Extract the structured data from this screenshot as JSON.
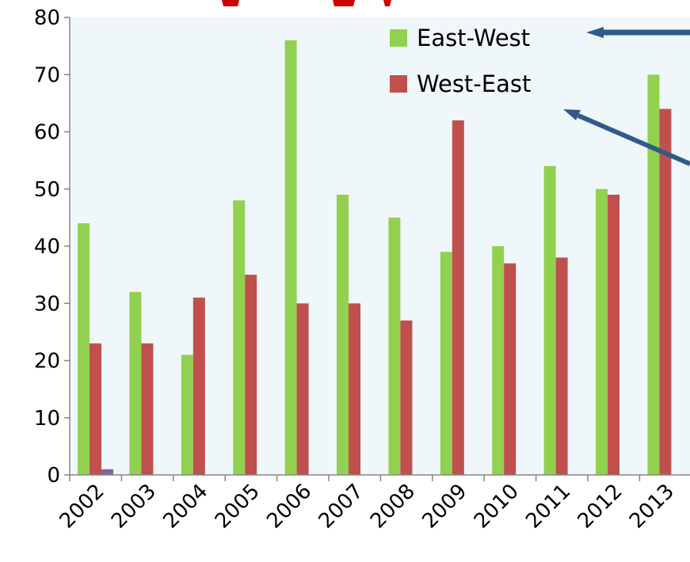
{
  "chart_data": {
    "type": "bar",
    "title": "",
    "xlabel": "",
    "ylabel": "",
    "ylim": [
      0,
      80
    ],
    "yticks": [
      "0",
      "10",
      "20",
      "30",
      "40",
      "50",
      "60",
      "70",
      "80"
    ],
    "categories": [
      "2002",
      "2003",
      "2004",
      "2005",
      "2006",
      "2007",
      "2008",
      "2009",
      "2010",
      "2011",
      "2012",
      "2013"
    ],
    "series": [
      {
        "name": "East-West",
        "color": "#92d050",
        "values": [
          44,
          32,
          21,
          48,
          76,
          49,
          45,
          39,
          40,
          54,
          50,
          70
        ]
      },
      {
        "name": "West-East",
        "color": "#c0504d",
        "values": [
          23,
          23,
          31,
          35,
          30,
          30,
          27,
          62,
          37,
          38,
          49,
          64
        ]
      },
      {
        "name": "",
        "color": "#8064a2",
        "values": [
          1,
          0,
          0,
          0,
          0,
          0,
          0,
          0,
          0,
          0,
          0,
          0
        ]
      }
    ],
    "grid": false,
    "legend_position": "top-right",
    "plot_background": "#f0f7fa",
    "title_color": "#cc0000",
    "arrow_color": "#2e5b8a"
  }
}
